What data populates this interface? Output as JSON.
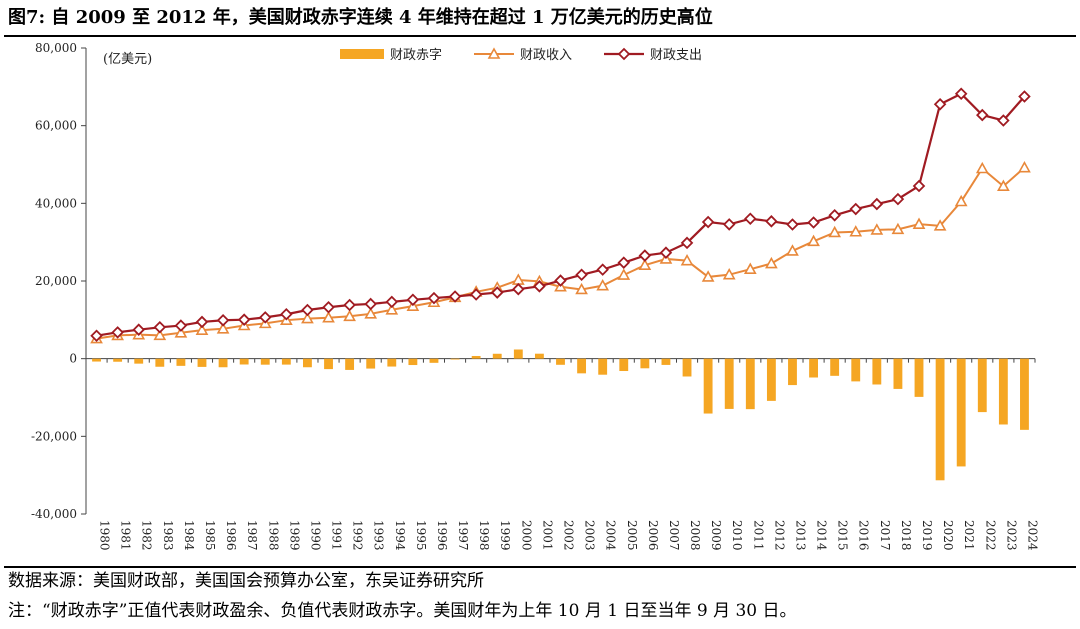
{
  "header": {
    "title": "图7: 自 2009 至 2012 年，美国财政赤字连续 4 年维持在超过 1 万亿美元的历史高位"
  },
  "footer": {
    "source": "数据来源：美国财政部，美国国会预算办公室，东吴证券研究所",
    "note": "注：“财政赤字”正值代表财政盈余、负值代表财政赤字。美国财年为上年 10 月 1 日至当年 9 月 30 日。"
  },
  "colors": {
    "deficit": "#F5A623",
    "revenue": "#E8883A",
    "spending": "#A01B22",
    "axis": "#444444"
  },
  "chart_data": {
    "type": "bar+line",
    "unit_label": "(亿美元)",
    "ylim": [
      -40000,
      80000
    ],
    "yticks": [
      -40000,
      -20000,
      0,
      20000,
      40000,
      60000,
      80000
    ],
    "ytick_labels": [
      "-40,000",
      "-20,000",
      "0",
      "20,000",
      "40,000",
      "60,000",
      "80,000"
    ],
    "legend_position": "top-center",
    "grid": false,
    "categories": [
      "1980",
      "1981",
      "1982",
      "1983",
      "1984",
      "1985",
      "1986",
      "1987",
      "1988",
      "1989",
      "1990",
      "1991",
      "1992",
      "1993",
      "1994",
      "1995",
      "1996",
      "1997",
      "1998",
      "1999",
      "2000",
      "2001",
      "2002",
      "2003",
      "2004",
      "2005",
      "2006",
      "2007",
      "2008",
      "2009",
      "2010",
      "2011",
      "2012",
      "2013",
      "2014",
      "2015",
      "2016",
      "2017",
      "2018",
      "2019",
      "2020",
      "2021",
      "2022",
      "2023",
      "2024"
    ],
    "series": [
      {
        "name": "财政赤字",
        "type": "bar",
        "values": [
          -740,
          -790,
          -1280,
          -2080,
          -1850,
          -2120,
          -2210,
          -1500,
          -1550,
          -1530,
          -2210,
          -2690,
          -2900,
          -2550,
          -2030,
          -1640,
          -1070,
          -220,
          690,
          1260,
          2360,
          1280,
          -1580,
          -3780,
          -4130,
          -3180,
          -2480,
          -1610,
          -4590,
          -14130,
          -12940,
          -13000,
          -10870,
          -6800,
          -4850,
          -4420,
          -5850,
          -6650,
          -7790,
          -9840,
          -31320,
          -27750,
          -13760,
          -16950,
          -18330
        ]
      },
      {
        "name": "财政收入",
        "type": "line",
        "values": [
          5170,
          5990,
          6180,
          6010,
          6660,
          7340,
          7690,
          8540,
          9090,
          9910,
          10320,
          10550,
          10910,
          11540,
          12590,
          13520,
          14530,
          15790,
          17220,
          18270,
          20250,
          19910,
          18530,
          17820,
          18800,
          21540,
          24070,
          25680,
          25240,
          21050,
          21630,
          23040,
          24500,
          27750,
          30220,
          32500,
          32680,
          33160,
          33300,
          34630,
          34200,
          40470,
          48970,
          44410,
          49190
        ]
      },
      {
        "name": "财政支出",
        "type": "line",
        "values": [
          5910,
          6780,
          7460,
          8080,
          8520,
          9460,
          9900,
          10040,
          10640,
          11440,
          12530,
          13240,
          13820,
          14090,
          14620,
          15160,
          15600,
          16010,
          16530,
          17020,
          17890,
          18630,
          20110,
          21600,
          22930,
          24720,
          26550,
          27290,
          29830,
          35180,
          34570,
          36030,
          35370,
          34550,
          35060,
          36920,
          38530,
          39810,
          41090,
          44470,
          65520,
          68220,
          62730,
          61340,
          67520
        ]
      }
    ]
  }
}
